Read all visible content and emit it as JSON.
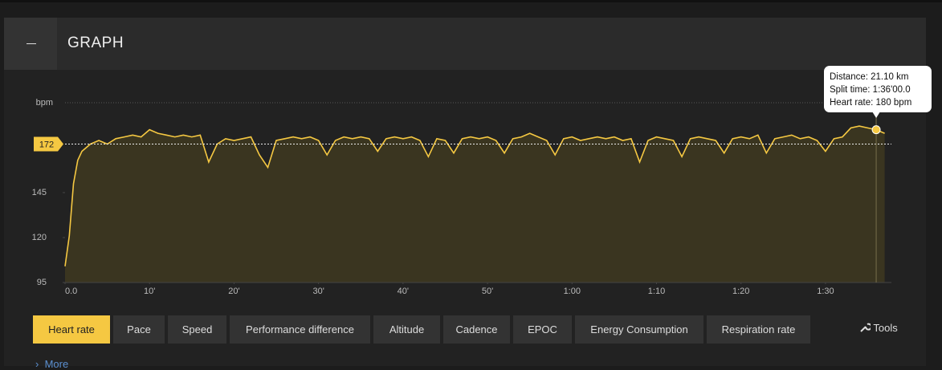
{
  "header": {
    "title": "GRAPH"
  },
  "chart_data": {
    "type": "area",
    "y_label": "bpm",
    "x": [
      0,
      0.5,
      1,
      1.5,
      2,
      3,
      4,
      5,
      6,
      7,
      8,
      9,
      10,
      11,
      12,
      13,
      14,
      15,
      16,
      17,
      18,
      19,
      20,
      21,
      22,
      23,
      24,
      25,
      26,
      27,
      28,
      29,
      30,
      31,
      32,
      33,
      34,
      35,
      36,
      37,
      38,
      39,
      40,
      41,
      42,
      43,
      44,
      45,
      46,
      47,
      48,
      49,
      50,
      51,
      52,
      53,
      54,
      55,
      56,
      57,
      58,
      59,
      60,
      61,
      62,
      63,
      64,
      65,
      66,
      67,
      68,
      69,
      70,
      71,
      72,
      73,
      74,
      75,
      76,
      77,
      78,
      79,
      80,
      81,
      82,
      83,
      84,
      85,
      86,
      87,
      88,
      89,
      90,
      91,
      92,
      93,
      94,
      95,
      96,
      97
    ],
    "values": [
      104,
      121,
      150,
      163,
      168,
      172,
      174,
      172,
      175,
      176,
      177,
      176,
      180,
      178,
      177,
      176,
      177,
      176,
      177,
      162,
      172,
      175,
      174,
      175,
      176,
      166,
      159,
      174,
      175,
      176,
      175,
      176,
      174,
      166,
      174,
      176,
      175,
      176,
      175,
      168,
      175,
      176,
      175,
      176,
      174,
      165,
      175,
      174,
      167,
      175,
      176,
      175,
      176,
      174,
      167,
      175,
      176,
      178,
      176,
      174,
      166,
      175,
      176,
      174,
      175,
      176,
      175,
      176,
      174,
      175,
      162,
      174,
      176,
      175,
      174,
      165,
      175,
      176,
      175,
      174,
      167,
      175,
      176,
      175,
      177,
      167,
      175,
      176,
      177,
      175,
      176,
      174,
      168,
      175,
      176,
      181,
      182,
      181,
      180,
      178
    ],
    "color": "#f5c842",
    "fill": "#3a3520",
    "xlim": [
      0,
      97.8
    ],
    "ylim": [
      95,
      195
    ],
    "xticks": [
      {
        "value": 0,
        "label": "0.0"
      },
      {
        "value": 10,
        "label": "10'"
      },
      {
        "value": 20,
        "label": "20'"
      },
      {
        "value": 30,
        "label": "30'"
      },
      {
        "value": 40,
        "label": "40'"
      },
      {
        "value": 50,
        "label": "50'"
      },
      {
        "value": 60,
        "label": "1:00"
      },
      {
        "value": 70,
        "label": "1:10"
      },
      {
        "value": 80,
        "label": "1:20"
      },
      {
        "value": 90,
        "label": "1:30"
      }
    ],
    "yticks": [
      95,
      120,
      145
    ],
    "average": 172,
    "tooltip": {
      "x": 96,
      "lines": [
        "Distance: 21.10 km",
        "Split time: 1:36'00.0",
        "Heart rate: 180 bpm"
      ]
    }
  },
  "tabs": [
    "Heart rate",
    "Pace",
    "Speed",
    "Performance difference",
    "Altitude",
    "Cadence",
    "EPOC",
    "Energy Consumption",
    "Respiration rate"
  ],
  "tools": "Tools",
  "more": "More"
}
